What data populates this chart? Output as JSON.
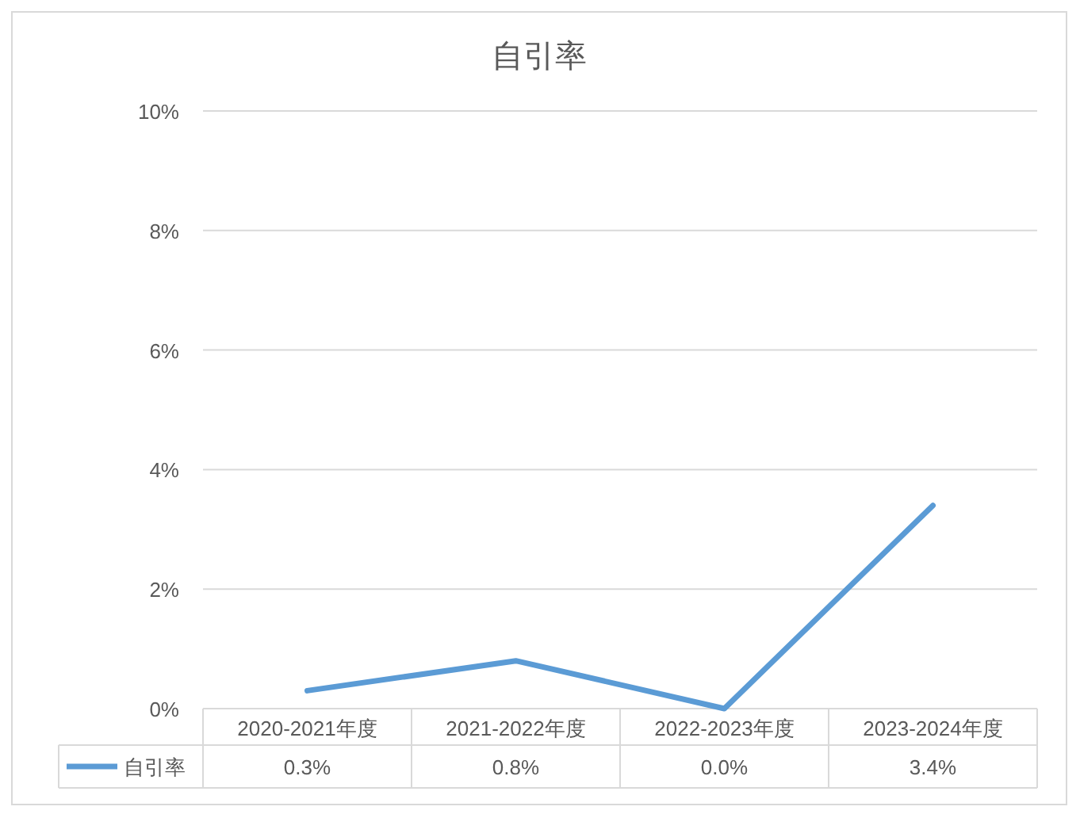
{
  "chart_data": {
    "type": "line",
    "title": "自引率",
    "categories": [
      "2020-2021年度",
      "2021-2022年度",
      "2022-2023年度",
      "2023-2024年度"
    ],
    "series": [
      {
        "name": "自引率",
        "color": "#5b9bd5",
        "values": [
          0.3,
          0.8,
          0.0,
          3.4
        ],
        "value_labels": [
          "0.3%",
          "0.8%",
          "0.0%",
          "3.4%"
        ]
      }
    ],
    "ylim": [
      0,
      10
    ],
    "yticks": [
      {
        "value": 0,
        "label": "0%"
      },
      {
        "value": 2,
        "label": "2%"
      },
      {
        "value": 4,
        "label": "4%"
      },
      {
        "value": 6,
        "label": "6%"
      },
      {
        "value": 8,
        "label": "8%"
      },
      {
        "value": 10,
        "label": "10%"
      }
    ],
    "grid": "y",
    "legend": "bottom",
    "marker": "none",
    "line_style": "solid"
  }
}
